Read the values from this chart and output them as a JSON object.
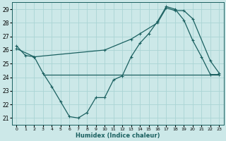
{
  "xlabel": "Humidex (Indice chaleur)",
  "ylabel": "",
  "background_color": "#cce8e8",
  "grid_color": "#aad4d4",
  "line_color": "#1a6060",
  "xlim": [
    -0.5,
    23.5
  ],
  "ylim": [
    20.5,
    29.5
  ],
  "yticks": [
    21,
    22,
    23,
    24,
    25,
    26,
    27,
    28,
    29
  ],
  "xticks": [
    0,
    1,
    2,
    3,
    4,
    5,
    6,
    7,
    8,
    9,
    10,
    11,
    12,
    13,
    14,
    15,
    16,
    17,
    18,
    19,
    20,
    21,
    22,
    23
  ],
  "curve1_x": [
    0,
    1,
    2,
    3,
    4,
    5,
    6,
    7,
    8,
    9,
    10,
    11,
    12,
    13,
    14,
    15,
    16,
    17,
    18,
    19,
    20,
    21,
    22,
    23
  ],
  "curve1_y": [
    26.3,
    25.6,
    25.5,
    24.3,
    23.3,
    22.2,
    21.1,
    21.0,
    21.4,
    22.5,
    22.5,
    23.8,
    24.1,
    25.5,
    26.5,
    27.2,
    28.1,
    29.2,
    29.0,
    28.2,
    26.7,
    25.5,
    24.2,
    24.2
  ],
  "curve2_x": [
    0,
    2,
    10,
    13,
    14,
    16,
    17,
    18,
    19,
    20,
    22,
    23
  ],
  "curve2_y": [
    26.1,
    25.5,
    26.0,
    26.8,
    27.2,
    28.0,
    29.1,
    28.9,
    28.9,
    28.3,
    25.2,
    24.3
  ],
  "hline_y": 24.2,
  "hline_x_start": 3,
  "hline_x_end": 23
}
